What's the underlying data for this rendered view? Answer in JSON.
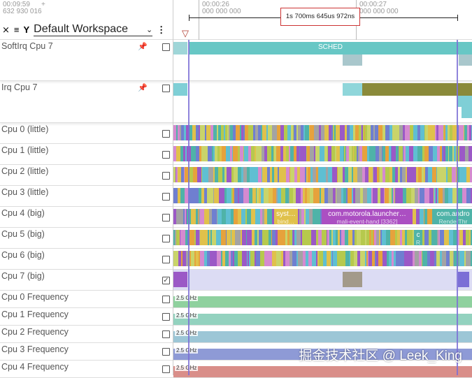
{
  "header": {
    "start_time": "00:09:59",
    "start_ns": "632 930 016",
    "plus": "+",
    "ticks": [
      {
        "time": "00:00:26",
        "ns": "000 000 000"
      },
      {
        "time": "00:00:27",
        "ns": "000 000 000"
      }
    ],
    "span_label": "1s 700ms 645us 972ns"
  },
  "toolbar": {
    "workspace": "Default Workspace"
  },
  "tracks": [
    {
      "name": "SoftIrq Cpu 7",
      "pinned": true,
      "checked": false
    },
    {
      "name": "Irq Cpu 7",
      "pinned": true,
      "checked": false
    },
    {
      "name": "Cpu 0 (little)",
      "checked": false
    },
    {
      "name": "Cpu 1 (little)",
      "checked": false
    },
    {
      "name": "Cpu 2 (little)",
      "checked": false
    },
    {
      "name": "Cpu 3 (little)",
      "checked": false
    },
    {
      "name": "Cpu 4 (big)",
      "checked": false
    },
    {
      "name": "Cpu 5 (big)",
      "checked": false
    },
    {
      "name": "Cpu 6 (big)",
      "checked": false
    },
    {
      "name": "Cpu 7 (big)",
      "checked": true
    },
    {
      "name": "Cpu 0 Frequency",
      "checked": false,
      "freq": "2.5 GHz",
      "color": "#8fd19e"
    },
    {
      "name": "Cpu 1 Frequency",
      "checked": false,
      "freq": "2.5 GHz",
      "color": "#93d2bf"
    },
    {
      "name": "Cpu 2 Frequency",
      "checked": false,
      "freq": "2.5 GHz",
      "color": "#9cc6d6"
    },
    {
      "name": "Cpu 3 Frequency",
      "checked": false,
      "freq": "2.5 GHz",
      "color": "#8e9ad6"
    },
    {
      "name": "Cpu 4 Frequency",
      "checked": false,
      "freq": "2.5 GHz",
      "color": "#d98e89"
    }
  ],
  "slices": {
    "sched": "SCHED",
    "cpu4": [
      {
        "title": "syst…",
        "sub": "bind…"
      },
      {
        "title": "com.motorola.launcher…",
        "sub": "mali-event-hand [3362]"
      },
      {
        "title": "com.andro",
        "sub": "RenderThr"
      }
    ],
    "cpu5": {
      "title": "c",
      "sub": "R"
    }
  },
  "palette": [
    "#9b59c6",
    "#e0c14b",
    "#4fb3a8",
    "#b6c94d",
    "#6f7fd0",
    "#d58ad0",
    "#e6a23c",
    "#5fbfd2",
    "#a3a3a3",
    "#c9d46a"
  ],
  "watermark": "掘金技术社区 @ Leek_King"
}
